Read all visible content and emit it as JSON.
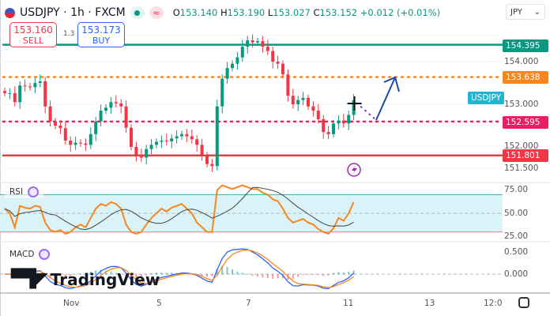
{
  "header": {
    "symbol": "USDJPY · 1h · FXCM",
    "open": "153.140",
    "high": "153.190",
    "low": "153.027",
    "close": "153.152",
    "change": "+0.012 (+0.01%)",
    "o": "O",
    "h": "H",
    "l": "L",
    "c": "C",
    "approx_icon": "≈"
  },
  "trade": {
    "sell_price": "153.160",
    "sell_label": "SELL",
    "spread": "1.3",
    "buy_price": "153.173",
    "buy_label": "BUY"
  },
  "currency_select": "JPY",
  "symbol_tag": "USDJPY",
  "price_axis": {
    "ticks": [
      "154.000",
      "153.000",
      "152.000",
      "151.500"
    ]
  },
  "levels": [
    {
      "price": "154.395",
      "color": "#089981",
      "style": "solid"
    },
    {
      "price": "153.638",
      "color": "#f7861c",
      "style": "dotted"
    },
    {
      "price": "152.595",
      "color": "#e91e63",
      "style": "dotted"
    },
    {
      "price": "151.801",
      "color": "#f23645",
      "style": "solid"
    }
  ],
  "rsi": {
    "label": "RSI",
    "ticks": [
      "75.00",
      "50.00",
      "25.00"
    ]
  },
  "macd": {
    "label": "MACD",
    "ticks": [
      "0.500",
      "0.000"
    ]
  },
  "time_axis": [
    "Nov",
    "5",
    "7",
    "11",
    "13",
    "12:0"
  ],
  "watermark": "TradingView",
  "colors": {
    "up": "#089981",
    "down": "#f23645",
    "rsi": "#f7861c",
    "arrow": "#1848a8",
    "tag": "#22b5d0"
  },
  "chart_data": {
    "type": "candlestick",
    "closes": [
      153.26,
      153.26,
      153.05,
      153.44,
      153.42,
      153.4,
      153.5,
      153.54,
      152.95,
      152.6,
      152.5,
      152.44,
      152.15,
      152.05,
      152.1,
      152.08,
      152.05,
      152.3,
      152.6,
      152.85,
      152.92,
      153.05,
      153.02,
      152.95,
      152.45,
      152.0,
      151.8,
      151.75,
      151.95,
      152.05,
      152.12,
      152.15,
      152.13,
      152.2,
      152.25,
      152.3,
      152.25,
      152.18,
      152.05,
      151.8,
      151.6,
      151.55,
      152.95,
      153.6,
      153.85,
      153.95,
      154.1,
      154.35,
      154.5,
      154.45,
      154.48,
      154.35,
      154.25,
      154.0,
      153.95,
      153.7,
      153.2,
      153.0,
      153.1,
      153.15,
      152.95,
      152.85,
      152.65,
      152.35,
      152.3,
      152.55,
      152.62,
      152.55,
      152.75,
      153.1
    ],
    "rsi": [
      55,
      50,
      35,
      58,
      56,
      55,
      58,
      57,
      40,
      32,
      30,
      32,
      28,
      30,
      35,
      38,
      35,
      45,
      55,
      60,
      58,
      62,
      60,
      55,
      38,
      30,
      28,
      30,
      38,
      45,
      50,
      55,
      52,
      56,
      58,
      60,
      55,
      50,
      40,
      35,
      30,
      30,
      75,
      80,
      78,
      76,
      78,
      80,
      78,
      76,
      76,
      72,
      70,
      65,
      63,
      55,
      45,
      40,
      42,
      44,
      40,
      38,
      33,
      30,
      28,
      34,
      45,
      42,
      50,
      62
    ],
    "price_range": [
      151.3,
      154.75
    ]
  }
}
